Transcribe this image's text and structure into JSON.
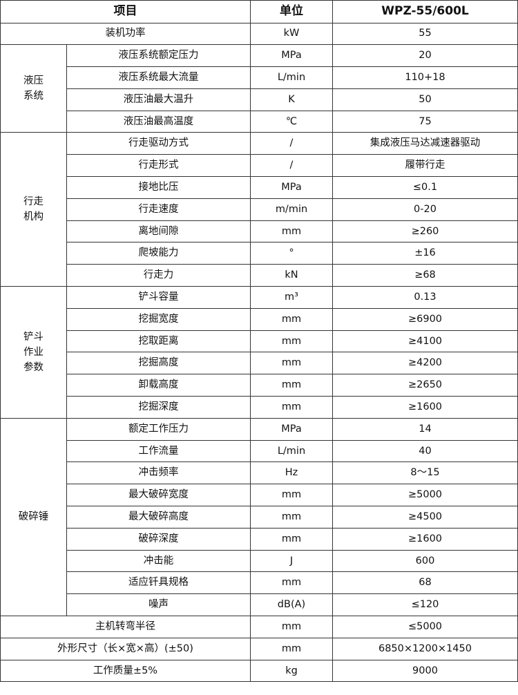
{
  "header": {
    "item": "项目",
    "unit": "单位",
    "model": "WPZ-55/600L"
  },
  "top_rows": [
    {
      "item": "装机功率",
      "unit": "kW",
      "value": "55"
    }
  ],
  "groups": [
    {
      "label_lines": [
        "液压",
        "系统"
      ],
      "rows": [
        {
          "item": "液压系统额定压力",
          "unit": "MPa",
          "value": "20"
        },
        {
          "item": "液压系统最大流量",
          "unit": "L/min",
          "value": "110+18"
        },
        {
          "item": "液压油最大温升",
          "unit": "K",
          "value": "50"
        },
        {
          "item": "液压油最高温度",
          "unit": "℃",
          "value": "75"
        }
      ]
    },
    {
      "label_lines": [
        "行走",
        "机构"
      ],
      "rows": [
        {
          "item": "行走驱动方式",
          "unit": "/",
          "value": "集成液压马达减速器驱动"
        },
        {
          "item": "行走形式",
          "unit": "/",
          "value": "履带行走"
        },
        {
          "item": "接地比压",
          "unit": "MPa",
          "value": "≤0.1"
        },
        {
          "item": "行走速度",
          "unit": "m/min",
          "value": "0-20"
        },
        {
          "item": "离地间隙",
          "unit": "mm",
          "value": "≥260"
        },
        {
          "item": "爬坡能力",
          "unit": "°",
          "value": "±16"
        },
        {
          "item": "行走力",
          "unit": "kN",
          "value": "≥68"
        }
      ]
    },
    {
      "label_lines": [
        "铲斗",
        "作业",
        "参数"
      ],
      "rows": [
        {
          "item": "铲斗容量",
          "unit": "m³",
          "value": "0.13"
        },
        {
          "item": "挖掘宽度",
          "unit": "mm",
          "value": "≥6900"
        },
        {
          "item": "挖取距离",
          "unit": "mm",
          "value": "≥4100"
        },
        {
          "item": "挖掘高度",
          "unit": "mm",
          "value": "≥4200"
        },
        {
          "item": "卸载高度",
          "unit": "mm",
          "value": "≥2650"
        },
        {
          "item": "挖掘深度",
          "unit": "mm",
          "value": "≥1600"
        }
      ]
    },
    {
      "label_lines": [
        "破碎锤"
      ],
      "rows": [
        {
          "item": "额定工作压力",
          "unit": "MPa",
          "value": "14"
        },
        {
          "item": "工作流量",
          "unit": "L/min",
          "value": "40"
        },
        {
          "item": "冲击频率",
          "unit": "Hz",
          "value": "8～15"
        },
        {
          "item": "最大破碎宽度",
          "unit": "mm",
          "value": "≥5000"
        },
        {
          "item": "最大破碎高度",
          "unit": "mm",
          "value": "≥4500"
        },
        {
          "item": "破碎深度",
          "unit": "mm",
          "value": "≥1600"
        },
        {
          "item": "冲击能",
          "unit": "J",
          "value": "600"
        },
        {
          "item": "适应钎具规格",
          "unit": "mm",
          "value": "68"
        },
        {
          "item": "噪声",
          "unit": "dB(A)",
          "value": "≤120"
        }
      ]
    }
  ],
  "bottom_rows": [
    {
      "item": "主机转弯半径",
      "unit": "mm",
      "value": "≤5000"
    },
    {
      "item": "外形尺寸（长×宽×高）(±50)",
      "unit": "mm",
      "value": "6850×1200×1450"
    },
    {
      "item": "工作质量±5%",
      "unit": "kg",
      "value": "9000"
    }
  ]
}
